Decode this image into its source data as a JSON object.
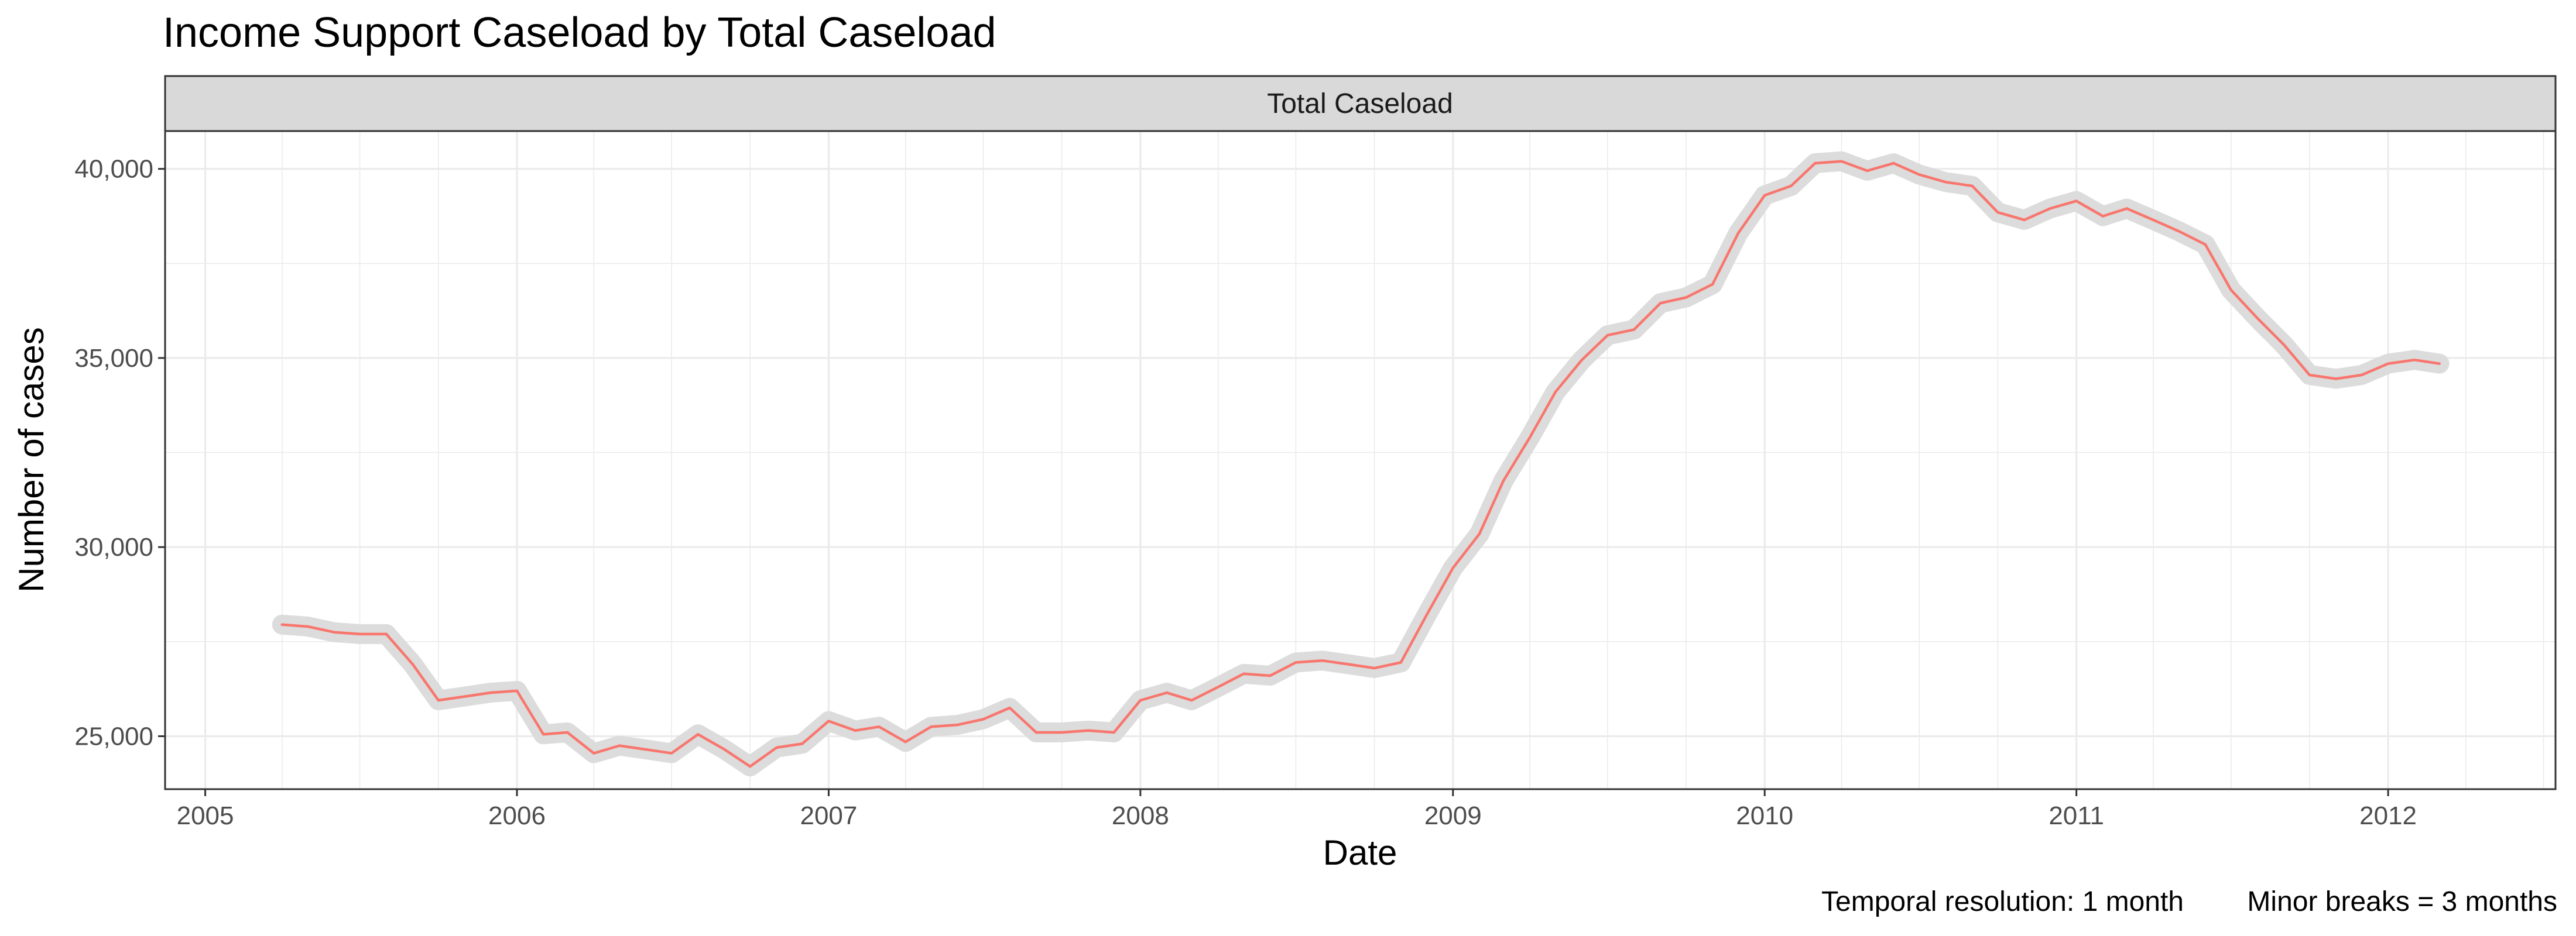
{
  "chart_data": {
    "type": "line",
    "title": "Income Support Caseload by Total Caseload",
    "facet_label": "Total Caseload",
    "xlabel": "Date",
    "ylabel": "Number of cases",
    "caption_left": "Temporal resolution: 1 month",
    "caption_right": "Minor breaks = 3 months",
    "x_ticks": [
      "2005",
      "2006",
      "2007",
      "2008",
      "2009",
      "2010",
      "2011",
      "2012"
    ],
    "y_ticks": [
      "25,000",
      "30,000",
      "35,000",
      "40,000"
    ],
    "y_tick_values": [
      25000,
      30000,
      35000,
      40000
    ],
    "xlim": [
      "2004-11-15",
      "2012-07-15"
    ],
    "ylim": [
      23600,
      41000
    ],
    "grid": true,
    "colors": {
      "line": "#F8766D",
      "ribbon": "#dcdcdc",
      "strip": "#d9d9d9",
      "grid": "#ebebeb"
    },
    "series": [
      {
        "x": [
          "2005-04",
          "2005-05",
          "2005-06",
          "2005-07",
          "2005-08",
          "2005-09",
          "2005-10",
          "2005-11",
          "2005-12",
          "2006-01",
          "2006-02",
          "2006-03",
          "2006-04",
          "2006-05",
          "2006-06",
          "2006-07",
          "2006-08",
          "2006-09",
          "2006-10",
          "2006-11",
          "2006-12",
          "2007-01",
          "2007-02",
          "2007-03",
          "2007-04",
          "2007-05",
          "2007-06",
          "2007-07",
          "2007-08",
          "2007-09",
          "2007-10",
          "2007-11",
          "2007-12",
          "2008-01",
          "2008-02",
          "2008-03",
          "2008-04",
          "2008-05",
          "2008-06",
          "2008-07",
          "2008-08",
          "2008-09",
          "2008-10",
          "2008-11",
          "2008-12",
          "2009-01",
          "2009-02",
          "2009-03",
          "2009-04",
          "2009-05",
          "2009-06",
          "2009-07",
          "2009-08",
          "2009-09",
          "2009-10",
          "2009-11",
          "2009-12",
          "2010-01",
          "2010-02",
          "2010-03",
          "2010-04",
          "2010-05",
          "2010-06",
          "2010-07",
          "2010-08",
          "2010-09",
          "2010-10",
          "2010-11",
          "2010-12",
          "2011-01",
          "2011-02",
          "2011-03",
          "2011-04",
          "2011-05",
          "2011-06",
          "2011-07",
          "2011-08",
          "2011-09",
          "2011-10",
          "2011-11",
          "2011-12",
          "2012-01",
          "2012-02",
          "2012-03"
        ],
        "values": [
          27950,
          27900,
          27750,
          27700,
          27700,
          26900,
          25950,
          26050,
          26150,
          26200,
          25050,
          25100,
          24550,
          24750,
          24650,
          24550,
          25050,
          24650,
          24200,
          24700,
          24800,
          25400,
          25150,
          25250,
          24850,
          25250,
          25300,
          25450,
          25750,
          25100,
          25100,
          25150,
          25100,
          25950,
          26150,
          25950,
          26300,
          26650,
          26600,
          26950,
          27000,
          26900,
          26800,
          26950,
          28200,
          29450,
          30350,
          31750,
          32900,
          34100,
          34950,
          35600,
          35750,
          36450,
          36600,
          36950,
          38300,
          39300,
          39550,
          40150,
          40200,
          39950,
          40150,
          39850,
          39650,
          39550,
          38850,
          38650,
          38950,
          39150,
          38750,
          38950,
          38650,
          38350,
          38000,
          36800,
          36050,
          35350,
          34550,
          34450,
          34550,
          34850,
          34950,
          34850
        ]
      }
    ]
  }
}
